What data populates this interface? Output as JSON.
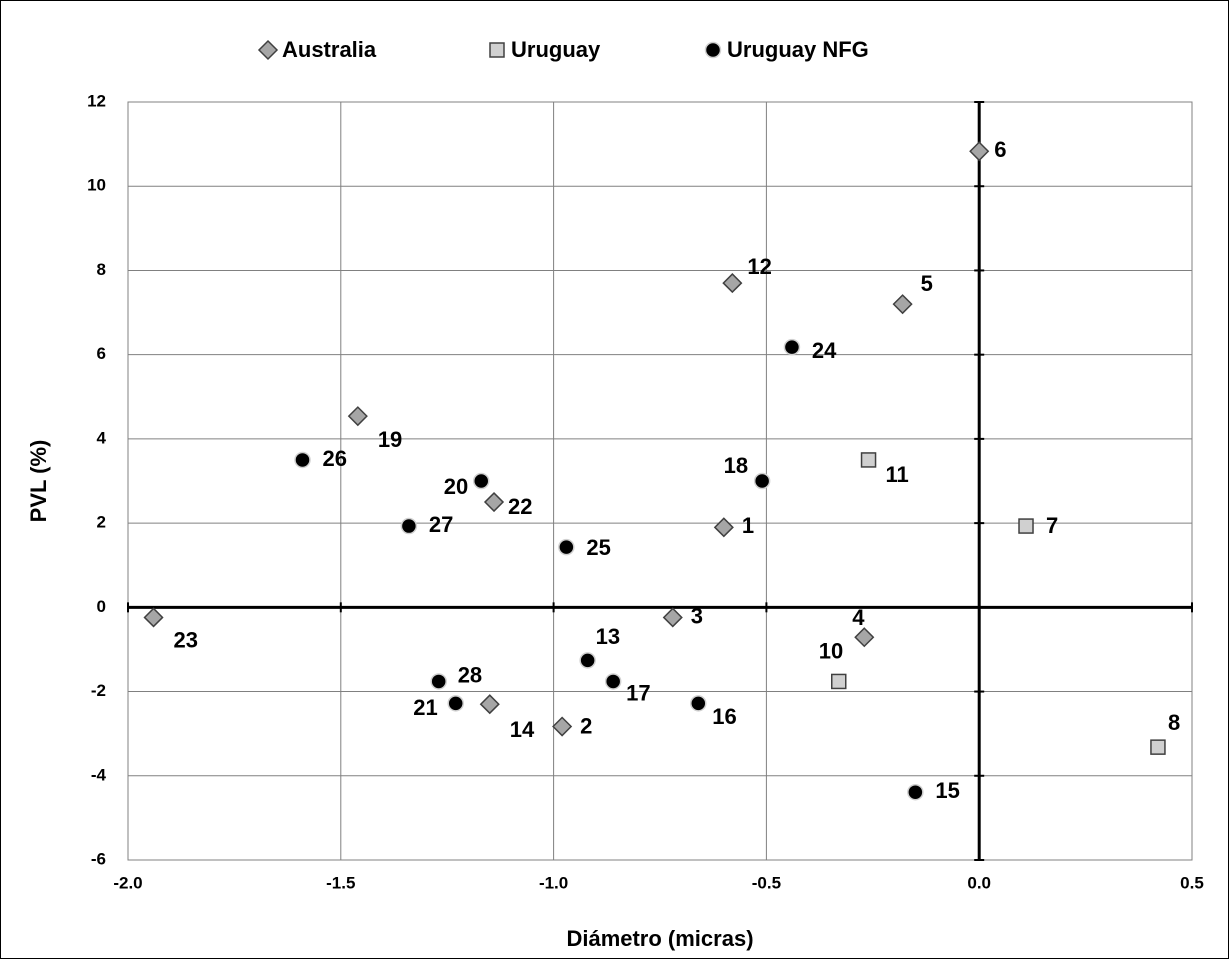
{
  "chart_data": {
    "type": "scatter",
    "x_label": "Diámetro (micras)",
    "y_label": "PVL (%)",
    "xlim": [
      -2.0,
      0.5
    ],
    "xticks": [
      {
        "value": -2.0,
        "label": "-2.0"
      },
      -1.5,
      {
        "value": -1.0,
        "label": "-1.0"
      },
      -0.5,
      {
        "value": 0.0,
        "label": "0.0"
      },
      0.5
    ],
    "ylim": [
      -6,
      12
    ],
    "yticks": [
      -6,
      -4,
      -2,
      0,
      2,
      4,
      6,
      8,
      10,
      12
    ],
    "grid": true,
    "legend": "top",
    "series": [
      {
        "name": "Australia",
        "marker": "diamond",
        "color": "#a6a6a6",
        "labels": [
          "1",
          "2",
          "3",
          "4",
          "5",
          "6",
          "12",
          "14",
          "19",
          "22",
          "23"
        ],
        "x": [
          -0.6,
          -0.98,
          -0.72,
          -0.27,
          -0.18,
          0.0,
          -0.58,
          -1.15,
          -1.46,
          -1.14,
          -1.94
        ],
        "values": [
          1.9,
          -2.83,
          -0.24,
          -0.71,
          7.2,
          10.83,
          7.7,
          -2.3,
          4.54,
          2.5,
          -0.24
        ]
      },
      {
        "name": "Uruguay",
        "marker": "square",
        "color": "#d0d0d0",
        "labels": [
          "7",
          "8",
          "10",
          "11"
        ],
        "x": [
          0.11,
          0.42,
          -0.33,
          -0.26
        ],
        "values": [
          1.93,
          -3.32,
          -1.76,
          3.5
        ]
      },
      {
        "name": "Uruguay NFG",
        "marker": "circle",
        "color": "#000000",
        "labels": [
          "13",
          "15",
          "16",
          "17",
          "18",
          "20",
          "21",
          "24",
          "25",
          "26",
          "27",
          "28"
        ],
        "x": [
          -0.92,
          -0.15,
          -0.66,
          -0.86,
          -0.51,
          -1.17,
          -1.23,
          -0.44,
          -0.97,
          -1.59,
          -1.34,
          -1.27
        ],
        "values": [
          -1.26,
          -4.39,
          -2.28,
          -1.76,
          3.0,
          3.0,
          -2.28,
          6.18,
          1.43,
          3.5,
          1.93,
          -1.76
        ]
      }
    ]
  }
}
